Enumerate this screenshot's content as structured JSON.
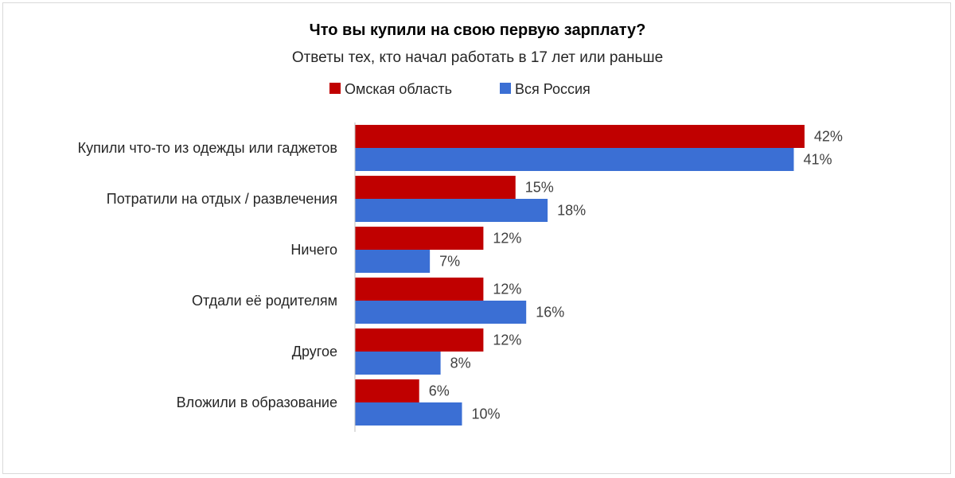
{
  "chart_data": {
    "type": "bar",
    "orientation": "horizontal",
    "title": "Что вы купили на свою первую зарплату?",
    "subtitle": "Ответы тех, кто начал работать в 17 лет или раньше",
    "legend_position": "top",
    "grid": false,
    "xlim": [
      0,
      45
    ],
    "categories": [
      "Купили что-то из одежды или гаджетов",
      "Потратили на отдых / развлечения",
      "Ничего",
      "Отдали её родителям",
      "Другое",
      "Вложили в образование"
    ],
    "series": [
      {
        "name": "Омская область",
        "color": "#c00000",
        "values": [
          42,
          15,
          12,
          12,
          12,
          6
        ],
        "labels": [
          "42%",
          "15%",
          "12%",
          "12%",
          "12%",
          "6%"
        ]
      },
      {
        "name": "Вся Россия",
        "color": "#3b6fd4",
        "values": [
          41,
          18,
          7,
          16,
          8,
          10
        ],
        "labels": [
          "41%",
          "18%",
          "7%",
          "16%",
          "8%",
          "10%"
        ]
      }
    ]
  }
}
